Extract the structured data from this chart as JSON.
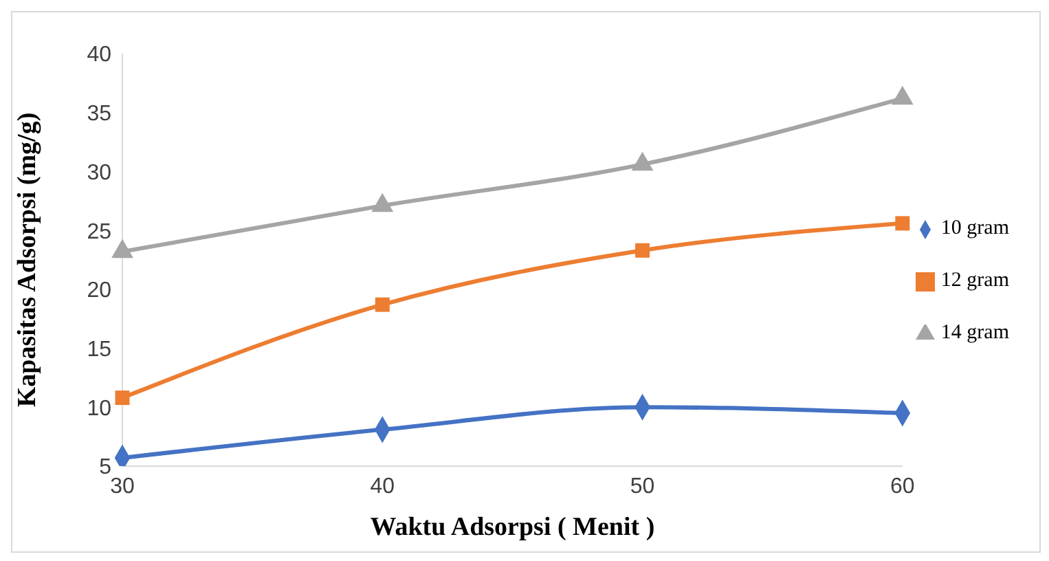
{
  "chart_data": {
    "type": "line",
    "xlabel": "Waktu Adsorpsi ( Menit )",
    "ylabel": "Kapasitas Adsorpsi (mg/g)",
    "x": [
      30,
      40,
      50,
      60
    ],
    "series": [
      {
        "name": "10 gram",
        "color": "#4472c4",
        "marker": "diamond",
        "values": [
          5.7,
          8.1,
          10.0,
          9.5
        ]
      },
      {
        "name": "12 gram",
        "color": "#ed7d31",
        "marker": "square",
        "values": [
          10.8,
          18.7,
          23.3,
          25.6
        ]
      },
      {
        "name": "14 gram",
        "color": "#a5a5a5",
        "marker": "triangle",
        "values": [
          23.2,
          27.1,
          30.6,
          36.2
        ]
      }
    ],
    "xlim": [
      30,
      60
    ],
    "xticks": [
      30,
      40,
      50,
      60
    ],
    "ylim": [
      5,
      40
    ],
    "yticks": [
      5,
      10,
      15,
      20,
      25,
      30,
      35,
      40
    ],
    "grid": false,
    "legend": "right"
  }
}
